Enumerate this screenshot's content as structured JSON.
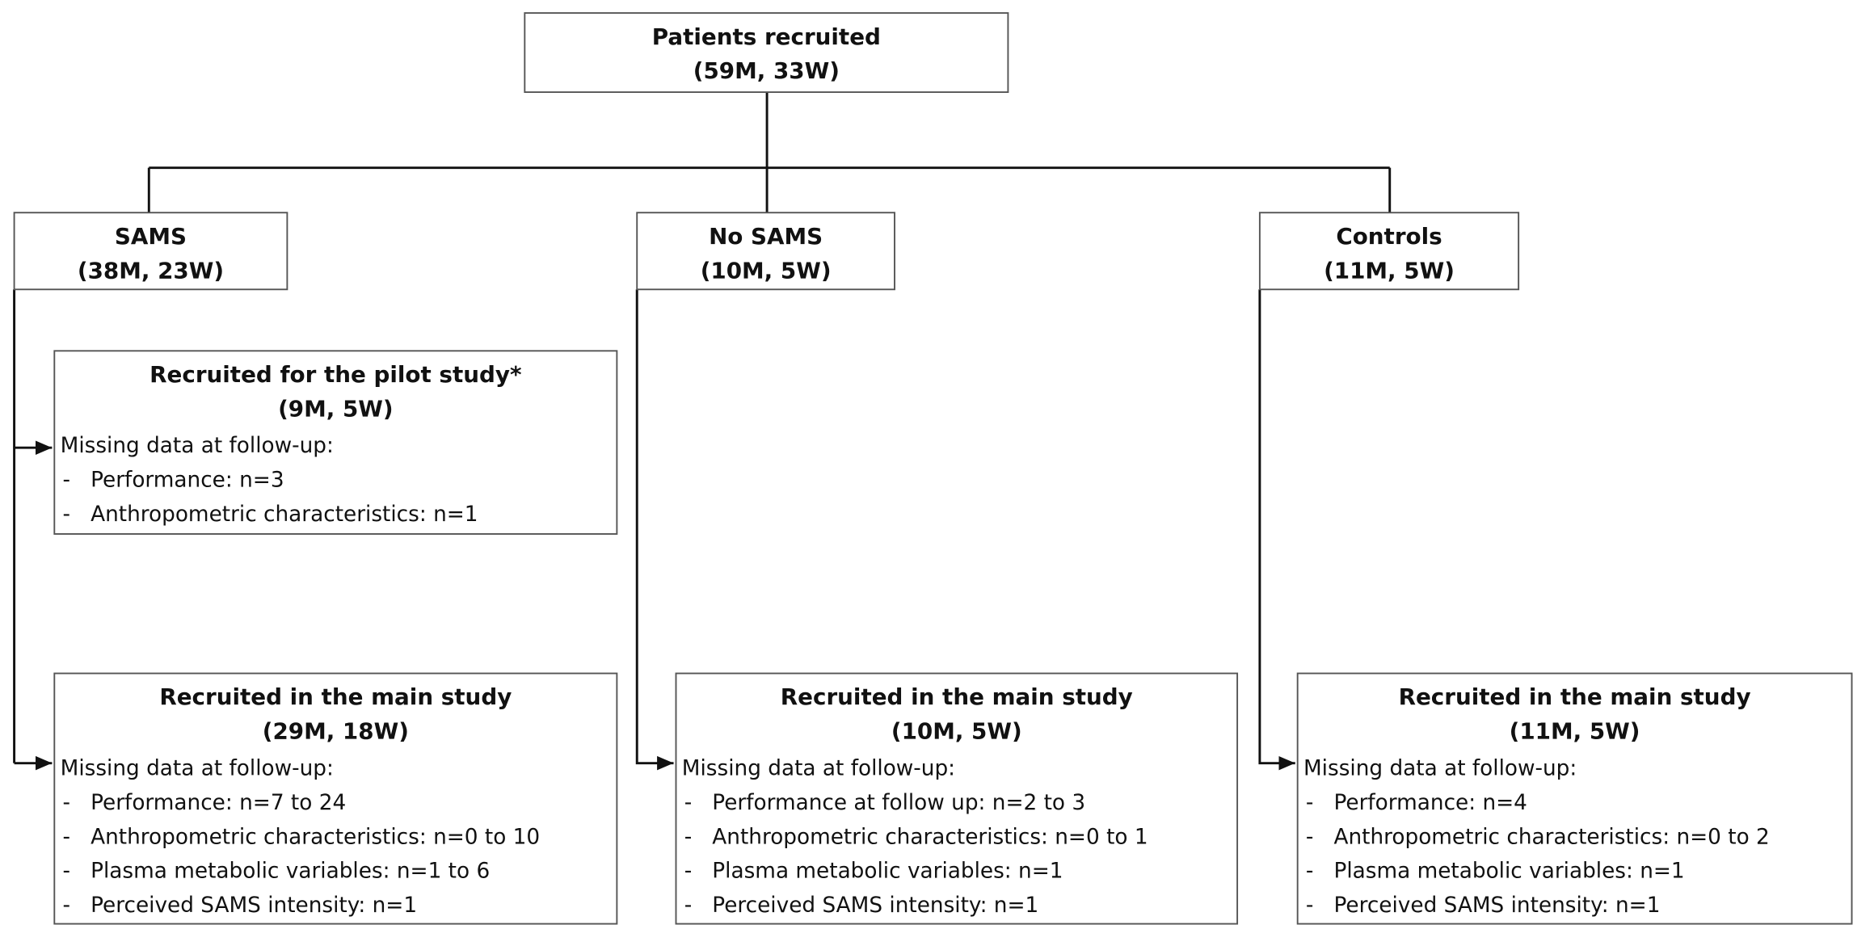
{
  "root": {
    "title": "Patients recruited",
    "subtitle": "(59M, 33W)"
  },
  "groups": [
    {
      "title": "SAMS",
      "subtitle": "(38M, 23W)"
    },
    {
      "title": "No SAMS",
      "subtitle": "(10M, 5W)"
    },
    {
      "title": "Controls",
      "subtitle": "(11M, 5W)"
    }
  ],
  "boxes": [
    {
      "title": "Recruited for the pilot study*",
      "subtitle": "(9M, 5W)",
      "heading": "Missing data at follow-up:",
      "items": [
        "-   Performance: n=3",
        "-   Anthropometric characteristics: n=1"
      ]
    },
    {
      "title": "Recruited in the main study",
      "subtitle": "(29M, 18W)",
      "heading": "Missing data at follow-up:",
      "items": [
        "-   Performance: n=7 to 24",
        "-   Anthropometric characteristics: n=0 to 10",
        "-   Plasma metabolic variables: n=1 to 6",
        "-   Perceived SAMS intensity: n=1"
      ]
    },
    {
      "title": "Recruited in the main study",
      "subtitle": "(10M, 5W)",
      "heading": "Missing data at follow-up:",
      "items": [
        "-   Performance at follow up: n=2 to 3",
        "-   Anthropometric characteristics: n=0 to 1",
        "-   Plasma metabolic variables: n=1",
        "-   Perceived SAMS intensity: n=1"
      ]
    },
    {
      "title": "Recruited in the main study",
      "subtitle": "(11M, 5W)",
      "heading": "Missing data at follow-up:",
      "items": [
        "-   Performance: n=4",
        "-   Anthropometric characteristics: n=0 to 2",
        "-   Plasma metabolic variables: n=1",
        "-   Perceived SAMS intensity: n=1"
      ]
    }
  ]
}
